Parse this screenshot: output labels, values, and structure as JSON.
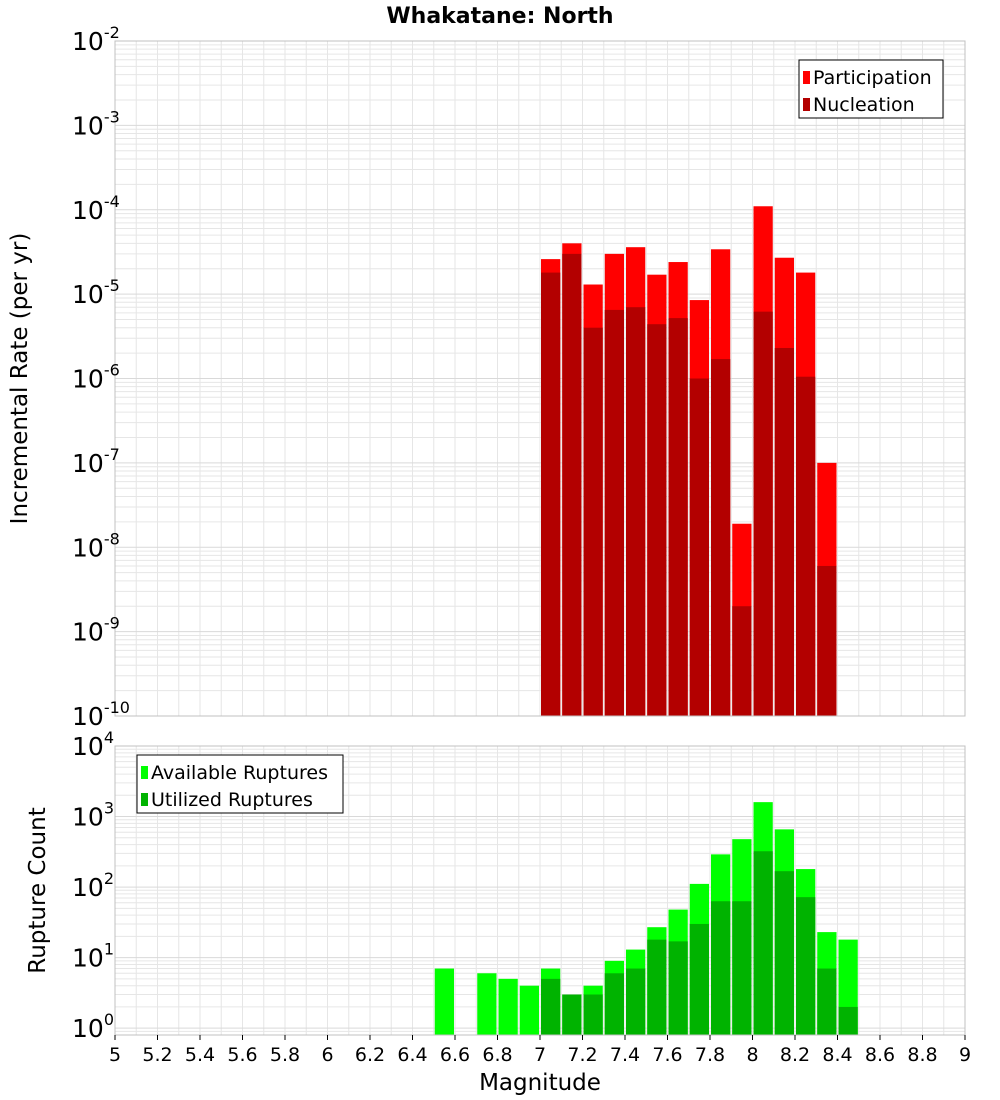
{
  "title": "Whakatane: North",
  "colors": {
    "participation": "#ff0000",
    "nucleation": "#b30000",
    "available": "#00ff00",
    "utilized": "#00b300",
    "grid": "#e6e6e6",
    "frame": "#c0c0c0"
  },
  "chart_data": [
    {
      "type": "bar",
      "panel": "top",
      "yscale": "log",
      "ylabel": "Incremental Rate (per yr)",
      "ylim": [
        1e-10,
        0.01
      ],
      "xlim": [
        5,
        9
      ],
      "bin_width": 0.1,
      "grid": true,
      "legend_position": "top-right",
      "series": [
        {
          "name": "Participation",
          "x": [
            7.05,
            7.15,
            7.25,
            7.35,
            7.45,
            7.55,
            7.65,
            7.75,
            7.85,
            7.95,
            8.05,
            8.15,
            8.25,
            8.35
          ],
          "values": [
            2.6e-05,
            4e-05,
            1.3e-05,
            3e-05,
            3.6e-05,
            1.7e-05,
            2.4e-05,
            8.5e-06,
            3.4e-05,
            1.9e-08,
            0.00011,
            2.7e-05,
            1.8e-05,
            1e-07
          ]
        },
        {
          "name": "Nucleation",
          "x": [
            7.05,
            7.15,
            7.25,
            7.35,
            7.45,
            7.55,
            7.65,
            7.75,
            7.85,
            7.95,
            8.05,
            8.15,
            8.25,
            8.35
          ],
          "values": [
            1.8e-05,
            3e-05,
            4e-06,
            6.5e-06,
            7e-06,
            4.4e-06,
            5.2e-06,
            1e-06,
            1.7e-06,
            2e-09,
            6.2e-06,
            2.3e-06,
            1.05e-06,
            6e-09
          ]
        }
      ]
    },
    {
      "type": "bar",
      "panel": "bottom",
      "yscale": "log",
      "ylabel": "Rupture Count",
      "xlabel": "Magnitude",
      "ylim": [
        0.8,
        10000
      ],
      "xlim": [
        5,
        9
      ],
      "bin_width": 0.1,
      "grid": true,
      "legend_position": "top-left",
      "xticks": [
        "5",
        "5.2",
        "5.4",
        "5.6",
        "5.8",
        "6",
        "6.2",
        "6.4",
        "6.6",
        "6.8",
        "7",
        "7.2",
        "7.4",
        "7.6",
        "7.8",
        "8",
        "8.2",
        "8.4",
        "8.6",
        "8.8",
        "9"
      ],
      "series": [
        {
          "name": "Available Ruptures",
          "x": [
            6.55,
            6.75,
            6.85,
            6.95,
            7.05,
            7.15,
            7.25,
            7.35,
            7.45,
            7.55,
            7.65,
            7.75,
            7.85,
            7.95,
            8.05,
            8.15,
            8.25,
            8.35,
            8.45
          ],
          "values": [
            7,
            6,
            5,
            4,
            7,
            3,
            4,
            9,
            13,
            27,
            48,
            111,
            291,
            478,
            1600,
            658,
            180,
            23,
            18
          ]
        },
        {
          "name": "Utilized Ruptures",
          "x": [
            6.55,
            6.75,
            6.85,
            6.95,
            7.05,
            7.15,
            7.25,
            7.35,
            7.45,
            7.55,
            7.65,
            7.75,
            7.85,
            7.95,
            8.05,
            8.15,
            8.25,
            8.35,
            8.45
          ],
          "values": [
            0,
            0,
            0,
            0,
            5,
            3,
            3,
            6,
            7,
            18,
            17,
            30,
            63,
            63,
            322,
            168,
            72,
            7,
            2
          ]
        }
      ]
    }
  ]
}
